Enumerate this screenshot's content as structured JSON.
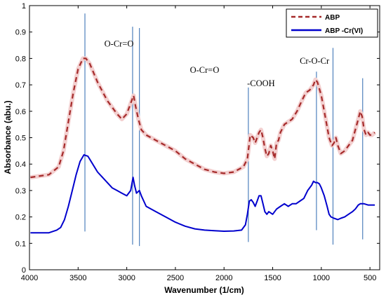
{
  "chart_data": {
    "type": "line",
    "xlabel": "Wavenumber (1/cm)",
    "ylabel": "Absorbance (abu.)",
    "xlim": [
      4000,
      400
    ],
    "ylim": [
      0,
      1
    ],
    "x_reversed": true,
    "grid": false,
    "legend_position": "top-right",
    "x_ticks": [
      4000,
      3500,
      3000,
      2500,
      2000,
      1500,
      1000,
      500
    ],
    "y_ticks": [
      0,
      0.1,
      0.2,
      0.3,
      0.4,
      0.5,
      0.6,
      0.7,
      0.8,
      0.9,
      1
    ],
    "x_tick_labels": [
      "4000",
      "3500",
      "3000",
      "2500",
      "2000",
      "1500",
      "1000",
      "500"
    ],
    "y_tick_labels": [
      "0",
      "0.1",
      "0.2",
      "0.3",
      "0.4",
      "0.5",
      "0.6",
      "0.7",
      "0.8",
      "0.9",
      "1"
    ],
    "series": [
      {
        "name": "ABP",
        "color": "#a52a2a",
        "style": "dashed",
        "points": [
          [
            3990,
            0.35
          ],
          [
            3800,
            0.36
          ],
          [
            3700,
            0.39
          ],
          [
            3650,
            0.45
          ],
          [
            3600,
            0.56
          ],
          [
            3550,
            0.67
          ],
          [
            3500,
            0.76
          ],
          [
            3450,
            0.8
          ],
          [
            3420,
            0.8
          ],
          [
            3380,
            0.78
          ],
          [
            3300,
            0.71
          ],
          [
            3200,
            0.64
          ],
          [
            3100,
            0.59
          ],
          [
            3050,
            0.57
          ],
          [
            3000,
            0.59
          ],
          [
            2960,
            0.63
          ],
          [
            2930,
            0.66
          ],
          [
            2910,
            0.62
          ],
          [
            2880,
            0.57
          ],
          [
            2850,
            0.53
          ],
          [
            2800,
            0.51
          ],
          [
            2700,
            0.49
          ],
          [
            2600,
            0.47
          ],
          [
            2500,
            0.45
          ],
          [
            2400,
            0.42
          ],
          [
            2300,
            0.4
          ],
          [
            2200,
            0.38
          ],
          [
            2100,
            0.37
          ],
          [
            2000,
            0.365
          ],
          [
            1900,
            0.37
          ],
          [
            1800,
            0.39
          ],
          [
            1760,
            0.42
          ],
          [
            1730,
            0.51
          ],
          [
            1700,
            0.5
          ],
          [
            1680,
            0.48
          ],
          [
            1640,
            0.52
          ],
          [
            1620,
            0.53
          ],
          [
            1600,
            0.5
          ],
          [
            1580,
            0.46
          ],
          [
            1560,
            0.43
          ],
          [
            1540,
            0.44
          ],
          [
            1520,
            0.47
          ],
          [
            1500,
            0.45
          ],
          [
            1480,
            0.42
          ],
          [
            1460,
            0.48
          ],
          [
            1440,
            0.49
          ],
          [
            1420,
            0.52
          ],
          [
            1380,
            0.55
          ],
          [
            1340,
            0.56
          ],
          [
            1300,
            0.57
          ],
          [
            1250,
            0.6
          ],
          [
            1200,
            0.64
          ],
          [
            1160,
            0.67
          ],
          [
            1120,
            0.68
          ],
          [
            1080,
            0.7
          ],
          [
            1060,
            0.72
          ],
          [
            1040,
            0.71
          ],
          [
            1000,
            0.66
          ],
          [
            960,
            0.58
          ],
          [
            920,
            0.5
          ],
          [
            890,
            0.47
          ],
          [
            870,
            0.48
          ],
          [
            850,
            0.5
          ],
          [
            830,
            0.47
          ],
          [
            800,
            0.44
          ],
          [
            760,
            0.45
          ],
          [
            720,
            0.47
          ],
          [
            680,
            0.49
          ],
          [
            650,
            0.53
          ],
          [
            620,
            0.57
          ],
          [
            600,
            0.6
          ],
          [
            580,
            0.58
          ],
          [
            560,
            0.53
          ],
          [
            540,
            0.51
          ],
          [
            520,
            0.52
          ],
          [
            500,
            0.51
          ],
          [
            480,
            0.51
          ],
          [
            450,
            0.52
          ]
        ]
      },
      {
        "name": "ABP -Cr(VI)",
        "color": "#0000cd",
        "style": "solid",
        "points": [
          [
            3990,
            0.14
          ],
          [
            3800,
            0.14
          ],
          [
            3720,
            0.15
          ],
          [
            3680,
            0.16
          ],
          [
            3640,
            0.19
          ],
          [
            3600,
            0.24
          ],
          [
            3560,
            0.3
          ],
          [
            3520,
            0.36
          ],
          [
            3480,
            0.41
          ],
          [
            3440,
            0.435
          ],
          [
            3400,
            0.43
          ],
          [
            3350,
            0.4
          ],
          [
            3300,
            0.37
          ],
          [
            3250,
            0.35
          ],
          [
            3200,
            0.33
          ],
          [
            3150,
            0.31
          ],
          [
            3100,
            0.3
          ],
          [
            3050,
            0.29
          ],
          [
            3000,
            0.28
          ],
          [
            2960,
            0.3
          ],
          [
            2935,
            0.35
          ],
          [
            2920,
            0.32
          ],
          [
            2900,
            0.29
          ],
          [
            2870,
            0.3
          ],
          [
            2850,
            0.28
          ],
          [
            2800,
            0.24
          ],
          [
            2700,
            0.22
          ],
          [
            2600,
            0.2
          ],
          [
            2500,
            0.18
          ],
          [
            2400,
            0.165
          ],
          [
            2300,
            0.155
          ],
          [
            2200,
            0.15
          ],
          [
            2100,
            0.148
          ],
          [
            2000,
            0.146
          ],
          [
            1900,
            0.147
          ],
          [
            1820,
            0.15
          ],
          [
            1780,
            0.17
          ],
          [
            1760,
            0.21
          ],
          [
            1740,
            0.26
          ],
          [
            1720,
            0.265
          ],
          [
            1700,
            0.255
          ],
          [
            1680,
            0.24
          ],
          [
            1660,
            0.26
          ],
          [
            1640,
            0.28
          ],
          [
            1620,
            0.28
          ],
          [
            1600,
            0.25
          ],
          [
            1580,
            0.22
          ],
          [
            1560,
            0.21
          ],
          [
            1540,
            0.22
          ],
          [
            1500,
            0.21
          ],
          [
            1460,
            0.23
          ],
          [
            1420,
            0.24
          ],
          [
            1380,
            0.25
          ],
          [
            1340,
            0.24
          ],
          [
            1300,
            0.25
          ],
          [
            1260,
            0.25
          ],
          [
            1220,
            0.26
          ],
          [
            1180,
            0.27
          ],
          [
            1140,
            0.3
          ],
          [
            1100,
            0.32
          ],
          [
            1080,
            0.335
          ],
          [
            1060,
            0.33
          ],
          [
            1040,
            0.33
          ],
          [
            1020,
            0.325
          ],
          [
            1000,
            0.31
          ],
          [
            970,
            0.28
          ],
          [
            940,
            0.24
          ],
          [
            920,
            0.21
          ],
          [
            900,
            0.2
          ],
          [
            870,
            0.195
          ],
          [
            830,
            0.19
          ],
          [
            800,
            0.195
          ],
          [
            760,
            0.2
          ],
          [
            720,
            0.21
          ],
          [
            680,
            0.22
          ],
          [
            650,
            0.23
          ],
          [
            620,
            0.245
          ],
          [
            600,
            0.25
          ],
          [
            560,
            0.25
          ],
          [
            520,
            0.245
          ],
          [
            480,
            0.245
          ],
          [
            450,
            0.245
          ]
        ]
      }
    ],
    "markers": {
      "color": "#4f81bd",
      "lines": [
        {
          "x": 3430,
          "y1": 0.145,
          "y2": 0.97
        },
        {
          "x": 2940,
          "y1": 0.095,
          "y2": 0.92
        },
        {
          "x": 2870,
          "y1": 0.09,
          "y2": 0.915
        },
        {
          "x": 1750,
          "y1": 0.105,
          "y2": 0.69
        },
        {
          "x": 1050,
          "y1": 0.15,
          "y2": 0.75
        },
        {
          "x": 880,
          "y1": 0.095,
          "y2": 0.84
        },
        {
          "x": 575,
          "y1": 0.115,
          "y2": 0.725
        }
      ]
    },
    "annotations": [
      {
        "text": "O-Cr=O",
        "x": 3080,
        "y": 0.845
      },
      {
        "text": "O-Cr=O",
        "x": 2200,
        "y": 0.745
      },
      {
        "text": "-COOH",
        "x": 1620,
        "y": 0.695
      },
      {
        "text": "Cr-O-Cr",
        "x": 1070,
        "y": 0.78
      }
    ]
  }
}
